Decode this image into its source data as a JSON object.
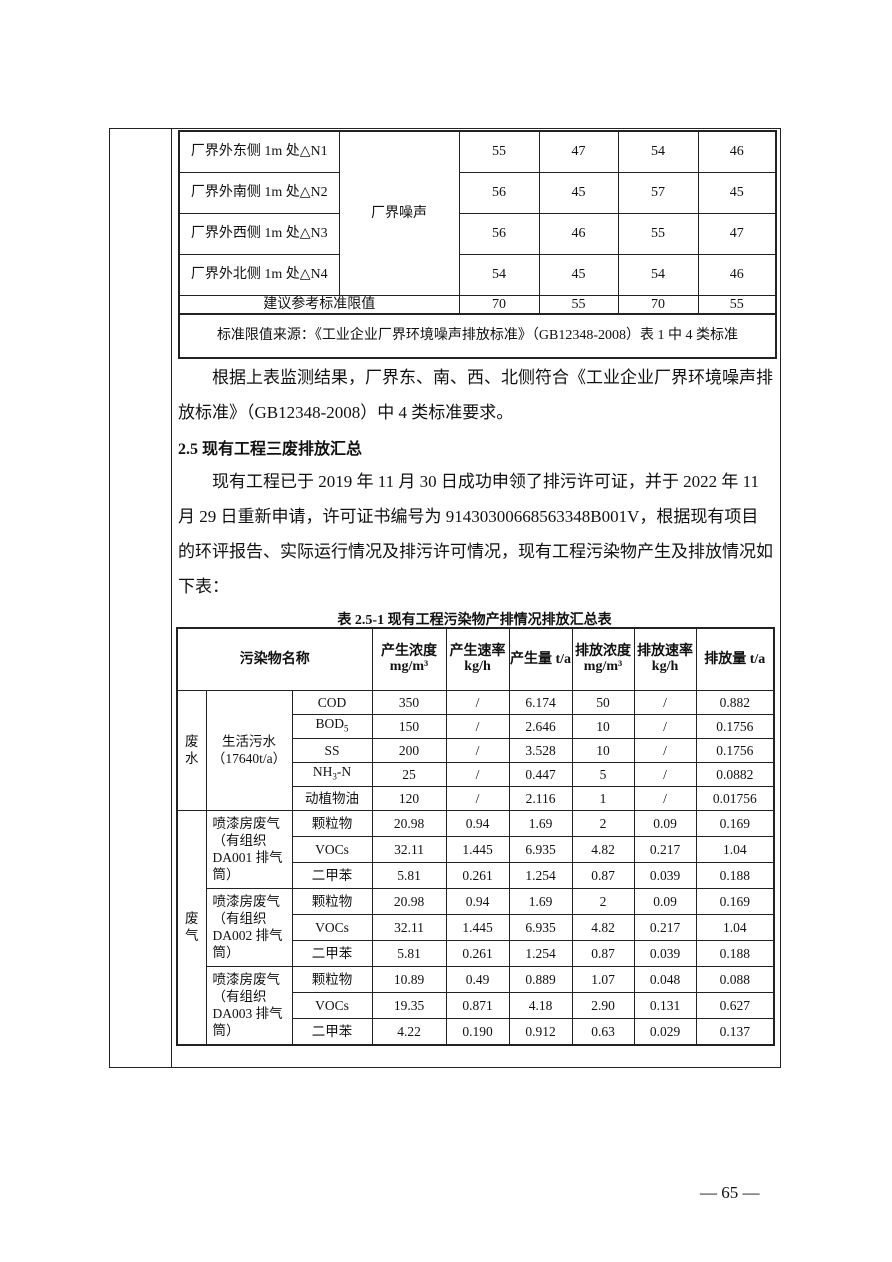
{
  "noise_table": {
    "rows": [
      {
        "point": "厂界外东侧 1m 处△N1",
        "values": [
          "55",
          "47",
          "54",
          "46"
        ]
      },
      {
        "point": "厂界外南侧 1m 处△N2",
        "values": [
          "56",
          "45",
          "57",
          "45"
        ]
      },
      {
        "point": "厂界外西侧 1m 处△N3",
        "values": [
          "56",
          "46",
          "55",
          "47"
        ]
      },
      {
        "point": "厂界外北侧 1m 处△N4",
        "values": [
          "54",
          "45",
          "54",
          "46"
        ]
      }
    ],
    "type_label": "厂界噪声",
    "limit_label": "建议参考标准限值",
    "limit_values": [
      "70",
      "55",
      "70",
      "55"
    ],
    "source_note": "标准限值来源：《工业企业厂界环境噪声排放标准》（GB12348-2008）表 1 中 4 类标准"
  },
  "paragraph1": "根据上表监测结果，厂界东、南、西、北侧符合《工业企业厂界环境噪声排放标准》（GB12348-2008）中 4 类标准要求。",
  "section_heading": "2.5 现有工程三废排放汇总",
  "paragraph2": "现有工程已于 2019 年 11 月 30 日成功申领了排污许可证，并于 2022 年 11 月 29 日重新申请，许可证书编号为 91430300668563348B001V，根据现有项目的环评报告、实际运行情况及排污许可情况，现有工程污染物产生及排放情况如下表：",
  "summary_table": {
    "caption": "表 2.5-1  现有工程污染物产排情况排放汇总表",
    "headers": {
      "name": "污染物名称",
      "gen_conc": "产生浓度",
      "gen_conc_unit": "mg/m³",
      "gen_rate": "产生速率",
      "gen_rate_unit": "kg/h",
      "gen_amount": "产生量 t/a",
      "dis_conc": "排放浓度",
      "dis_conc_unit": "mg/m³",
      "dis_rate": "排放速率",
      "dis_rate_unit": "kg/h",
      "dis_amount": "排放量 t/a"
    },
    "wastewater": {
      "category": "废水",
      "source": "生活污水（17640t/a）",
      "rows": [
        {
          "pollutant": "COD",
          "values": [
            "350",
            "/",
            "6.174",
            "50",
            "/",
            "0.882"
          ]
        },
        {
          "pollutant": "BOD5",
          "values": [
            "150",
            "/",
            "2.646",
            "10",
            "/",
            "0.1756"
          ]
        },
        {
          "pollutant": "SS",
          "values": [
            "200",
            "/",
            "3.528",
            "10",
            "/",
            "0.1756"
          ]
        },
        {
          "pollutant": "NH3-N",
          "values": [
            "25",
            "/",
            "0.447",
            "5",
            "/",
            "0.0882"
          ]
        },
        {
          "pollutant": "动植物油",
          "values": [
            "120",
            "/",
            "2.116",
            "1",
            "/",
            "0.01756"
          ]
        }
      ]
    },
    "waste_gas": {
      "category": "废气",
      "groups": [
        {
          "source": "喷漆房废气（有组织 DA001 排气筒）",
          "rows": [
            {
              "pollutant": "颗粒物",
              "values": [
                "20.98",
                "0.94",
                "1.69",
                "2",
                "0.09",
                "0.169"
              ]
            },
            {
              "pollutant": "VOCs",
              "values": [
                "32.11",
                "1.445",
                "6.935",
                "4.82",
                "0.217",
                "1.04"
              ]
            },
            {
              "pollutant": "二甲苯",
              "values": [
                "5.81",
                "0.261",
                "1.254",
                "0.87",
                "0.039",
                "0.188"
              ]
            }
          ]
        },
        {
          "source": "喷漆房废气（有组织 DA002 排气筒）",
          "rows": [
            {
              "pollutant": "颗粒物",
              "values": [
                "20.98",
                "0.94",
                "1.69",
                "2",
                "0.09",
                "0.169"
              ]
            },
            {
              "pollutant": "VOCs",
              "values": [
                "32.11",
                "1.445",
                "6.935",
                "4.82",
                "0.217",
                "1.04"
              ]
            },
            {
              "pollutant": "二甲苯",
              "values": [
                "5.81",
                "0.261",
                "1.254",
                "0.87",
                "0.039",
                "0.188"
              ]
            }
          ]
        },
        {
          "source": "喷漆房废气（有组织 DA003 排气筒）",
          "rows": [
            {
              "pollutant": "颗粒物",
              "values": [
                "10.89",
                "0.49",
                "0.889",
                "1.07",
                "0.048",
                "0.088"
              ]
            },
            {
              "pollutant": "VOCs",
              "values": [
                "19.35",
                "0.871",
                "4.18",
                "2.90",
                "0.131",
                "0.627"
              ]
            },
            {
              "pollutant": "二甲苯",
              "values": [
                "4.22",
                "0.190",
                "0.912",
                "0.63",
                "0.029",
                "0.137"
              ]
            }
          ]
        }
      ]
    }
  },
  "page_number": "— 65 —"
}
